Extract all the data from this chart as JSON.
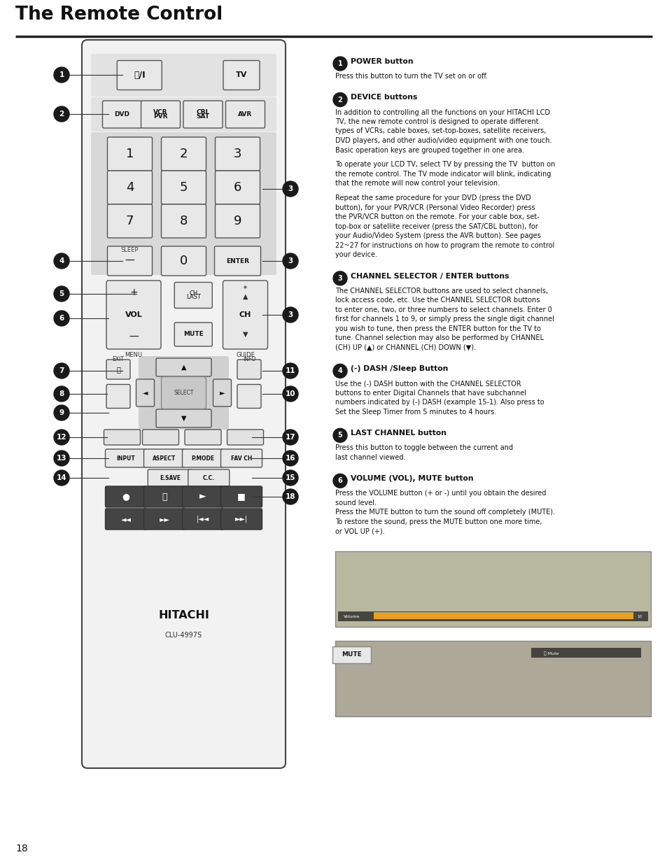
{
  "title": "The Remote Control",
  "page_number": "18",
  "bg_color": "#ffffff",
  "descriptions": [
    {
      "num": "1",
      "heading": "POWER button",
      "text": "Press this button to turn the TV set on or off."
    },
    {
      "num": "2",
      "heading": "DEVICE buttons",
      "text": "In addition to controlling all the functions on your HITACHI LCD\nTV, the new remote control is designed to operate different\ntypes of VCRs, cable boxes, set-top-boxes, satellite receivers,\nDVD players, and other audio/video equipment with one touch.\nBasic operation keys are grouped together in one area.\n\nTo operate your LCD TV, select TV by pressing the TV  button on\nthe remote control. The TV mode indicator will blink, indicating\nthat the remote will now control your television.\n\nRepeat the same procedure for your DVD (press the DVD\nbutton), for your PVR/VCR (Personal Video Recorder) press\nthe PVR/VCR button on the remote. For your cable box, set-\ntop-box or satellite receiver (press the SAT/CBL button), for\nyour Audio/Video System (press the AVR button). See pages\n22~27 for instructions on how to program the remote to control\nyour device."
    },
    {
      "num": "3",
      "heading": "CHANNEL SELECTOR / ENTER buttons",
      "text": "The CHANNEL SELECTOR buttons are used to select channels,\nlock access code, etc. Use the CHANNEL SELECTOR buttons\nto enter one, two, or three numbers to select channels. Enter 0\nfirst for channels 1 to 9, or simply press the single digit channel\nyou wish to tune, then press the ENTER button for the TV to\ntune. Channel selection may also be performed by CHANNEL\n(CH) UP (▲) or CHANNEL (CH) DOWN (▼)."
    },
    {
      "num": "4",
      "heading": "(-) DASH /Sleep Button",
      "text": "Use the (-) DASH button with the CHANNEL SELECTOR\nbuttons to enter Digital Channels that have subchannel\nnumbers indicated by (-) DASH (example 15-1). Also press to\nSet the Sleep Timer from 5 minutes to 4 hours."
    },
    {
      "num": "5",
      "heading": "LAST CHANNEL button",
      "text": "Press this button to toggle between the current and\nlast channel viewed."
    },
    {
      "num": "6",
      "heading": "VOLUME (VOL), MUTE button",
      "text": "Press the VOLUME button (+ or -) until you obtain the desired\nsound level.\nPress the MUTE button to turn the sound off completely (MUTE).\nTo restore the sound, press the MUTE button one more time,\nor VOL UP (+)."
    }
  ]
}
